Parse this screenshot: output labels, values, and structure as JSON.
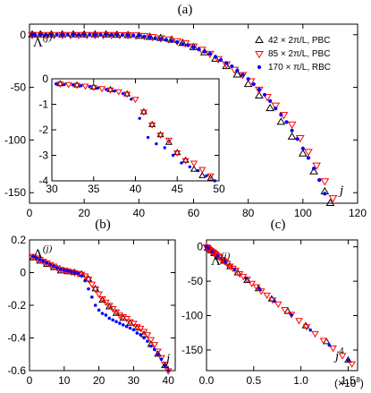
{
  "colors": {
    "series1": "#000000",
    "series2": "#ff0000",
    "series3": "#0000ff"
  },
  "chart_data": [
    {
      "panel": "(a)",
      "type": "scatter",
      "ylabel": "Λ^(j)",
      "xlabel": "j",
      "xlim": [
        0,
        120
      ],
      "ylim": [
        -160,
        10
      ],
      "xticks": [
        0,
        20,
        40,
        60,
        80,
        100,
        120
      ],
      "yticks": [
        0,
        -50,
        -100,
        -150
      ],
      "legend_position": "top-right",
      "series": [
        {
          "name": "42 × 2π/L, PBC",
          "marker": "triangle-up",
          "x": [
            1,
            4,
            8,
            12,
            16,
            20,
            24,
            28,
            32,
            36,
            40,
            44,
            48,
            52,
            56,
            60,
            64,
            68,
            72,
            76,
            80,
            84,
            88,
            92,
            96,
            100,
            104,
            108,
            110
          ],
          "y": [
            0,
            0,
            0,
            0,
            0,
            0,
            0,
            0,
            -0.3,
            -0.6,
            -1.4,
            -2.3,
            -3.3,
            -5,
            -8,
            -12,
            -17,
            -23,
            -30,
            -38,
            -47,
            -58,
            -70,
            -83,
            -97,
            -113,
            -130,
            -149,
            -160
          ]
        },
        {
          "name": "85 × 2π/L, PBC",
          "marker": "triangle-down",
          "x": [
            1,
            3,
            6,
            9,
            12,
            15,
            18,
            21,
            24,
            27,
            30,
            33,
            36,
            39,
            42,
            45,
            48,
            51,
            54,
            57,
            60,
            63,
            66,
            69,
            72,
            75,
            78,
            81,
            84,
            87,
            90,
            93,
            96,
            99,
            102,
            105,
            108,
            111
          ],
          "y": [
            0,
            0,
            0,
            0,
            0,
            0,
            0,
            0,
            0,
            0,
            0,
            -0.1,
            -0.2,
            -0.4,
            -1,
            -2,
            -3.2,
            -4.3,
            -6,
            -8,
            -11,
            -14,
            -18,
            -23,
            -28,
            -33,
            -38,
            -44,
            -52,
            -59,
            -67,
            -76,
            -85,
            -98,
            -111,
            -124,
            -139,
            -155
          ]
        },
        {
          "name": "170 × π/L, RBC",
          "marker": "circle",
          "x": [
            1,
            2,
            4,
            6,
            8,
            10,
            12,
            14,
            16,
            18,
            20,
            22,
            24,
            26,
            28,
            30,
            32,
            34,
            36,
            38,
            40,
            42,
            44,
            46,
            48,
            50,
            52,
            54,
            56,
            58,
            60,
            62,
            64,
            66,
            68,
            70,
            72,
            74,
            76,
            78,
            80,
            82,
            84,
            86,
            88,
            90,
            92,
            94,
            96,
            98,
            100,
            102,
            104,
            106,
            108,
            110
          ],
          "y": [
            0,
            0,
            0,
            0,
            0,
            0,
            0,
            0,
            0,
            0,
            0,
            0,
            0,
            0,
            0,
            0,
            -0.1,
            -0.2,
            -0.4,
            -0.7,
            -1,
            -1.8,
            -2.5,
            -3.5,
            -4,
            -5,
            -6,
            -7,
            -9,
            -10,
            -12,
            -14,
            -16,
            -18,
            -21,
            -24,
            -27,
            -30,
            -34,
            -38,
            -42,
            -47,
            -52,
            -57,
            -63,
            -70,
            -76,
            -83,
            -91,
            -99,
            -108,
            -117,
            -127,
            -138,
            -151,
            -165
          ]
        }
      ]
    },
    {
      "panel": "(a) inset",
      "type": "scatter",
      "xlim": [
        30,
        50
      ],
      "ylim": [
        -4,
        0
      ],
      "xticks": [
        30,
        35,
        40,
        45,
        50
      ],
      "yticks": [
        0,
        -1,
        -2,
        -3,
        -4
      ],
      "series": [
        {
          "name": "42 × 2π/L, PBC",
          "x": [
            31,
            33,
            35,
            37,
            39,
            41,
            42,
            43,
            44,
            45,
            46,
            47,
            48,
            49
          ],
          "y": [
            -0.2,
            -0.25,
            -0.33,
            -0.43,
            -0.6,
            -1.3,
            -1.8,
            -2.2,
            -2.5,
            -2.9,
            -3.2,
            -3.55,
            -3.8,
            -3.9
          ]
        },
        {
          "name": "85 × 2π/L, PBC",
          "x": [
            31,
            32,
            33,
            34,
            35,
            36,
            37,
            38,
            39,
            40,
            41,
            42,
            43,
            44,
            45,
            46,
            47,
            48,
            49
          ],
          "y": [
            -0.2,
            -0.22,
            -0.25,
            -0.28,
            -0.33,
            -0.38,
            -0.43,
            -0.5,
            -0.6,
            -0.8,
            -1.3,
            -1.8,
            -2.2,
            -2.4,
            -2.9,
            -3.2,
            -3.3,
            -3.55,
            -3.8
          ]
        },
        {
          "name": "170 × π/L, RBC",
          "x": [
            30.5,
            31.5,
            32.5,
            33.5,
            34.5,
            35.5,
            36.5,
            37.5,
            38.5,
            39.5,
            40.5,
            41.5,
            42.5,
            43.5,
            44.5,
            45.5,
            46.5,
            47.5,
            48.5,
            49.5
          ],
          "y": [
            -0.2,
            -0.22,
            -0.24,
            -0.27,
            -0.31,
            -0.36,
            -0.42,
            -0.48,
            -0.58,
            -0.8,
            -1.55,
            -2.3,
            -2.55,
            -2.7,
            -3.0,
            -3.3,
            -3.45,
            -3.6,
            -3.8,
            -4.0
          ]
        }
      ]
    },
    {
      "panel": "(b)",
      "type": "scatter",
      "ylabel": "Λ^(j)",
      "xlabel": "j",
      "xlim": [
        0,
        42
      ],
      "ylim": [
        -0.6,
        0.2
      ],
      "xticks": [
        0,
        10,
        20,
        30,
        40
      ],
      "yticks": [
        0.2,
        0,
        -0.2,
        -0.4,
        -0.6
      ],
      "series": [
        {
          "name": "42 × 2π/L, PBC",
          "x": [
            1,
            3,
            5,
            7,
            9,
            11,
            13,
            15,
            17,
            19,
            21,
            23,
            25,
            27,
            29,
            31,
            33,
            35,
            37,
            39
          ],
          "y": [
            0.09,
            0.07,
            0.05,
            0.03,
            0.01,
            0.005,
            0.0,
            -0.01,
            -0.04,
            -0.1,
            -0.17,
            -0.21,
            -0.25,
            -0.28,
            -0.31,
            -0.34,
            -0.38,
            -0.44,
            -0.5,
            -0.57
          ]
        },
        {
          "name": "85 × 2π/L, PBC",
          "x": [
            1,
            2,
            3,
            4,
            5,
            6,
            7,
            8,
            9,
            10,
            11,
            12,
            13,
            14,
            15,
            16,
            17,
            18,
            19,
            20,
            21,
            22,
            23,
            24,
            25,
            26,
            27,
            28,
            29,
            30,
            31,
            32,
            33,
            34,
            35,
            36,
            37,
            38,
            39,
            40
          ],
          "y": [
            0.1,
            0.09,
            0.08,
            0.07,
            0.06,
            0.05,
            0.04,
            0.03,
            0.02,
            0.015,
            0.01,
            0.005,
            0.0,
            -0.005,
            -0.01,
            -0.02,
            -0.04,
            -0.07,
            -0.1,
            -0.13,
            -0.16,
            -0.18,
            -0.2,
            -0.22,
            -0.24,
            -0.26,
            -0.27,
            -0.28,
            -0.3,
            -0.31,
            -0.33,
            -0.34,
            -0.36,
            -0.38,
            -0.41,
            -0.44,
            -0.48,
            -0.52,
            -0.56,
            -0.6
          ]
        },
        {
          "name": "170 × π/L, RBC",
          "x": [
            1,
            2,
            3,
            4,
            5,
            6,
            7,
            8,
            9,
            10,
            11,
            12,
            13,
            14,
            15,
            16,
            17,
            18,
            19,
            20,
            21,
            22,
            23,
            24,
            25,
            26,
            27,
            28,
            29,
            30,
            31,
            32,
            33,
            34,
            35,
            36,
            37,
            38,
            39,
            40
          ],
          "y": [
            0.1,
            0.09,
            0.08,
            0.07,
            0.06,
            0.05,
            0.04,
            0.03,
            0.02,
            0.015,
            0.01,
            0.005,
            0.0,
            -0.005,
            -0.02,
            -0.05,
            -0.1,
            -0.15,
            -0.2,
            -0.23,
            -0.25,
            -0.26,
            -0.28,
            -0.29,
            -0.3,
            -0.31,
            -0.32,
            -0.33,
            -0.34,
            -0.35,
            -0.37,
            -0.38,
            -0.4,
            -0.42,
            -0.45,
            -0.47,
            -0.5,
            -0.53,
            -0.57,
            -0.6
          ]
        }
      ]
    },
    {
      "panel": "(c)",
      "type": "scatter",
      "ylabel": "Λ^(j)",
      "xlabel": "j^4",
      "x_multiplier_label": "(×10^8)",
      "xlim": [
        0,
        1.6
      ],
      "ylim": [
        -180,
        10
      ],
      "xticks": [
        0.0,
        0.5,
        1.0,
        1.5
      ],
      "ytick_labels": [
        "0",
        "-50",
        "-100",
        "-150"
      ],
      "yticks": [
        0,
        -50,
        -100,
        -150
      ],
      "series": [
        {
          "name": "42 × 2π/L, PBC",
          "x": [
            0.01,
            0.03,
            0.05,
            0.08,
            0.12,
            0.18,
            0.25,
            0.33,
            0.43,
            0.55,
            0.69,
            0.86,
            1.05,
            1.27,
            1.5
          ],
          "y": [
            -2,
            -4,
            -6,
            -10,
            -15,
            -21,
            -29,
            -38,
            -49,
            -61,
            -76,
            -94,
            -115,
            -138,
            -165
          ]
        },
        {
          "name": "85 × 2π/L, PBC",
          "x": [
            0.0,
            0.005,
            0.01,
            0.015,
            0.02,
            0.03,
            0.04,
            0.05,
            0.06,
            0.07,
            0.08,
            0.09,
            0.1,
            0.12,
            0.14,
            0.16,
            0.18,
            0.2,
            0.22,
            0.25,
            0.28,
            0.31,
            0.35,
            0.39,
            0.43,
            0.48,
            0.53,
            0.58,
            0.64,
            0.7,
            0.76,
            0.83,
            0.9,
            0.98,
            1.06,
            1.15,
            1.24,
            1.34,
            1.44,
            1.54
          ],
          "y": [
            0,
            -1,
            -1.5,
            -2,
            -3,
            -4,
            -5,
            -6,
            -7,
            -8,
            -9,
            -10,
            -11,
            -13,
            -15,
            -18,
            -20,
            -22,
            -24,
            -28,
            -31,
            -34,
            -39,
            -43,
            -47,
            -53,
            -58,
            -64,
            -70,
            -77,
            -83,
            -91,
            -98,
            -107,
            -116,
            -126,
            -136,
            -147,
            -158,
            -170
          ]
        },
        {
          "name": "170 × π/L, RBC",
          "x": [
            0.0,
            0.02,
            0.06,
            0.12,
            0.2,
            0.3,
            0.42,
            0.56,
            0.72,
            0.9,
            1.1,
            1.3,
            1.5
          ],
          "y": [
            0,
            -2,
            -7,
            -13,
            -22,
            -33,
            -46,
            -61,
            -79,
            -99,
            -121,
            -143,
            -165
          ]
        }
      ]
    }
  ],
  "labels": {
    "panel_a": "(a)",
    "panel_b": "(b)",
    "panel_c": "(c)",
    "lambda_symbol": "Λ",
    "lambda_sup": "(j)",
    "j": "j",
    "j4_sup": "4",
    "x_mult": "(×10",
    "x_mult_exp": "8",
    "x_mult_close": ")"
  }
}
